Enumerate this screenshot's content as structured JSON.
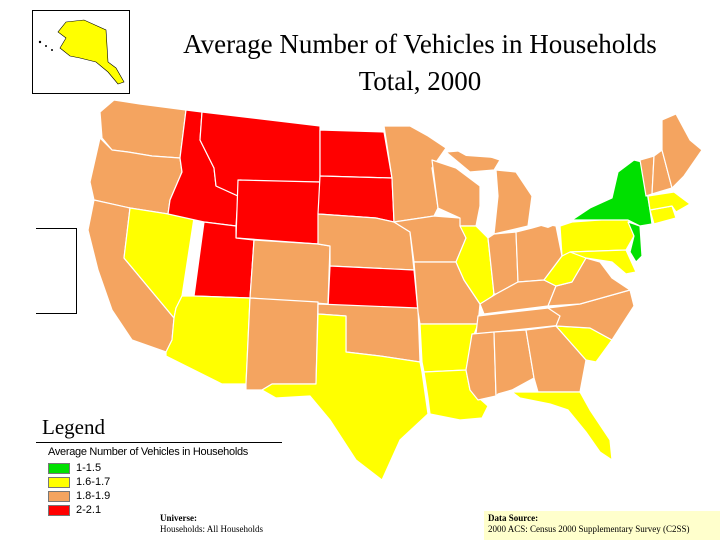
{
  "title": {
    "line1": "Average Number of Vehicles in Households",
    "line2": "Total, 2000"
  },
  "legend": {
    "heading": "Legend",
    "subtitle": "Average Number of Vehicles in Households",
    "items": [
      {
        "label": "1-1.5",
        "color": "#00e000"
      },
      {
        "label": "1.6-1.7",
        "color": "#ffff00"
      },
      {
        "label": "1.8-1.9",
        "color": "#f4a460"
      },
      {
        "label": "2-2.1",
        "color": "#ff0000"
      }
    ]
  },
  "universe": {
    "label": "Universe:",
    "value": "Households: All Households"
  },
  "source": {
    "label": "Data Source:",
    "value": "2000 ACS: Census 2000 Supplementary Survey (C2SS)"
  },
  "colors": {
    "low": "#00e000",
    "mid_low": "#ffff00",
    "mid_high": "#f4a460",
    "high": "#ff0000",
    "source_bg": "#ffffcc"
  },
  "regions": [
    {
      "name": "WA",
      "class": "1.8-1.9"
    },
    {
      "name": "OR",
      "class": "1.8-1.9"
    },
    {
      "name": "CA",
      "class": "1.8-1.9"
    },
    {
      "name": "NV",
      "class": "1.6-1.7"
    },
    {
      "name": "ID",
      "class": "2-2.1"
    },
    {
      "name": "MT",
      "class": "2-2.1"
    },
    {
      "name": "WY",
      "class": "2-2.1"
    },
    {
      "name": "UT",
      "class": "2-2.1"
    },
    {
      "name": "AZ",
      "class": "1.6-1.7"
    },
    {
      "name": "CO",
      "class": "1.8-1.9"
    },
    {
      "name": "NM",
      "class": "1.8-1.9"
    },
    {
      "name": "ND",
      "class": "2-2.1"
    },
    {
      "name": "SD",
      "class": "2-2.1"
    },
    {
      "name": "NE",
      "class": "1.8-1.9"
    },
    {
      "name": "KS",
      "class": "2-2.1"
    },
    {
      "name": "OK",
      "class": "1.8-1.9"
    },
    {
      "name": "TX",
      "class": "1.6-1.7"
    },
    {
      "name": "MN",
      "class": "1.8-1.9"
    },
    {
      "name": "IA",
      "class": "1.8-1.9"
    },
    {
      "name": "MO",
      "class": "1.8-1.9"
    },
    {
      "name": "AR",
      "class": "1.6-1.7"
    },
    {
      "name": "LA",
      "class": "1.6-1.7"
    },
    {
      "name": "WI",
      "class": "1.8-1.9"
    },
    {
      "name": "IL",
      "class": "1.6-1.7"
    },
    {
      "name": "MI",
      "class": "1.8-1.9"
    },
    {
      "name": "IN",
      "class": "1.8-1.9"
    },
    {
      "name": "OH",
      "class": "1.8-1.9"
    },
    {
      "name": "KY",
      "class": "1.8-1.9"
    },
    {
      "name": "TN",
      "class": "1.8-1.9"
    },
    {
      "name": "MS",
      "class": "1.8-1.9"
    },
    {
      "name": "AL",
      "class": "1.8-1.9"
    },
    {
      "name": "GA",
      "class": "1.8-1.9"
    },
    {
      "name": "FL",
      "class": "1.6-1.7"
    },
    {
      "name": "SC",
      "class": "1.6-1.7"
    },
    {
      "name": "NC",
      "class": "1.8-1.9"
    },
    {
      "name": "VA",
      "class": "1.8-1.9"
    },
    {
      "name": "WV",
      "class": "1.6-1.7"
    },
    {
      "name": "PA",
      "class": "1.6-1.7"
    },
    {
      "name": "NY",
      "class": "1-1.5"
    },
    {
      "name": "NJ",
      "class": "1-1.5"
    },
    {
      "name": "MD",
      "class": "1.6-1.7"
    },
    {
      "name": "VT",
      "class": "1.8-1.9"
    },
    {
      "name": "NH",
      "class": "1.8-1.9"
    },
    {
      "name": "ME",
      "class": "1.8-1.9"
    },
    {
      "name": "MA",
      "class": "1.6-1.7"
    },
    {
      "name": "CT",
      "class": "1.6-1.7"
    },
    {
      "name": "AK",
      "class": "1.6-1.7"
    }
  ]
}
